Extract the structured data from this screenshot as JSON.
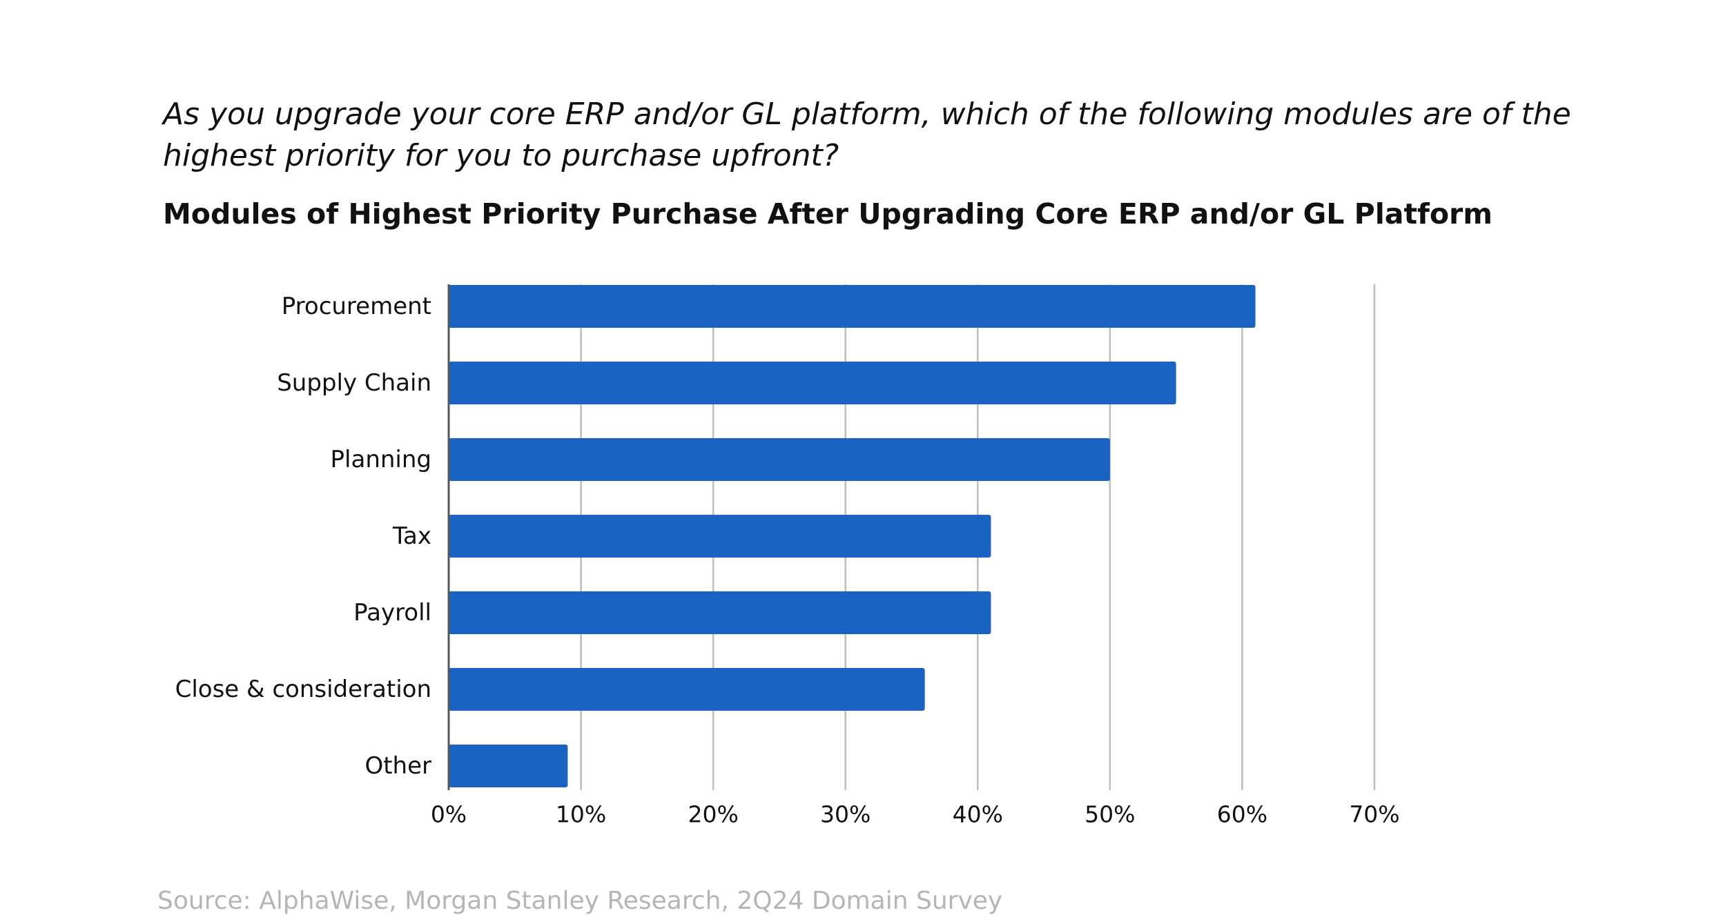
{
  "question": "As you upgrade your core ERP and/or GL platform, which of the following modules are of the highest priority for you to purchase upfront?",
  "source": "Source: AlphaWise, Morgan Stanley Research, 2Q24 Domain Survey",
  "colors": {
    "bar": "#1a63c2",
    "grid": "#bdbdbd",
    "axis": "#555555",
    "text": "#111111",
    "source": "#b5b5b5"
  },
  "chart_data": {
    "type": "bar",
    "orientation": "horizontal",
    "title": "Modules of Highest Priority Purchase After Upgrading Core ERP and/or GL Platform",
    "xlabel": "",
    "ylabel": "",
    "categories": [
      "Procurement",
      "Supply Chain",
      "Planning",
      "Tax",
      "Payroll",
      "Close & consideration",
      "Other"
    ],
    "values": [
      61,
      55,
      50,
      41,
      41,
      36,
      9
    ],
    "unit": "%",
    "xlim": [
      0,
      70
    ],
    "xticks": [
      0,
      10,
      20,
      30,
      40,
      50,
      60,
      70
    ],
    "xtick_labels": [
      "0%",
      "10%",
      "20%",
      "30%",
      "40%",
      "50%",
      "60%",
      "70%"
    ],
    "grid": "vertical",
    "legend": "none"
  }
}
